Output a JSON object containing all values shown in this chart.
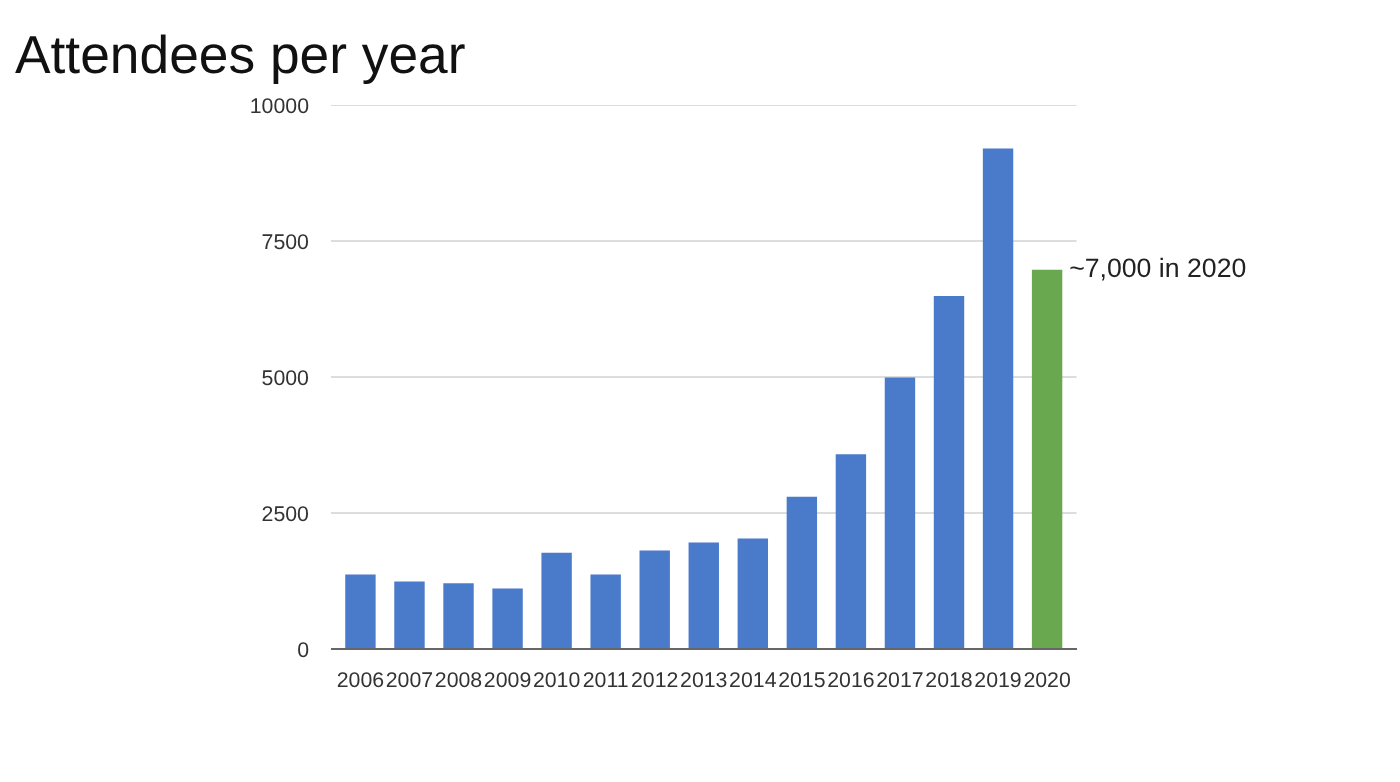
{
  "chart_data": {
    "type": "bar",
    "title": "Attendees per year",
    "categories": [
      "2006",
      "2007",
      "2008",
      "2009",
      "2010",
      "2011",
      "2012",
      "2013",
      "2014",
      "2015",
      "2016",
      "2017",
      "2018",
      "2019",
      "2020"
    ],
    "values": [
      1370,
      1240,
      1210,
      1110,
      1770,
      1370,
      1810,
      1960,
      2030,
      2800,
      3580,
      4990,
      6490,
      9200,
      6970
    ],
    "colors": [
      "#4a7bcb",
      "#4a7bcb",
      "#4a7bcb",
      "#4a7bcb",
      "#4a7bcb",
      "#4a7bcb",
      "#4a7bcb",
      "#4a7bcb",
      "#4a7bcb",
      "#4a7bcb",
      "#4a7bcb",
      "#4a7bcb",
      "#4a7bcb",
      "#4a7bcb",
      "#6aa84f"
    ],
    "ylim": [
      0,
      10000
    ],
    "yticks": [
      0,
      2500,
      5000,
      7500,
      10000
    ],
    "grid": "y",
    "annotations": [
      {
        "text": "~7,000 in 2020",
        "x": "2020",
        "y": 7000
      }
    ]
  }
}
